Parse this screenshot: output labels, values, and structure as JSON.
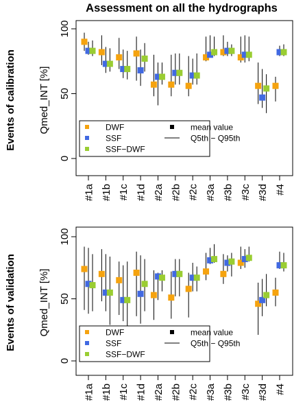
{
  "title": "Assessment on all the hydrographs",
  "colors": {
    "DWF": "#F5A30F",
    "SSF": "#4169E1",
    "SSF-DWF": "#9ACD32"
  },
  "legend": {
    "series": [
      "DWF",
      "SSF",
      "SSF−DWF"
    ],
    "mean_label": "mean value",
    "range_label": "Q5th − Q95th"
  },
  "chart_data": [
    {
      "type": "scatter",
      "row_label": "Events of calibration",
      "ylabel": "Qmed_INT [%]",
      "ylim": [
        0,
        100
      ],
      "yticks": [
        "0",
        "50",
        "100"
      ],
      "legend_position": "bottom-left",
      "categories": [
        "#1a",
        "#1b",
        "#1c",
        "#1d",
        "#2a",
        "#2b",
        "#2c",
        "#3a",
        "#3b",
        "#3c",
        "#3d",
        "#4"
      ],
      "series": [
        {
          "name": "DWF",
          "mean": [
            90,
            82,
            78,
            81,
            57,
            57,
            56,
            78,
            82,
            78,
            56,
            56
          ],
          "q5": [
            83,
            72,
            69,
            60,
            48,
            48,
            48,
            75,
            79,
            74,
            42,
            44
          ],
          "q95": [
            97,
            95,
            93,
            94,
            80,
            80,
            79,
            94,
            95,
            94,
            74,
            63
          ]
        },
        {
          "name": "SSF",
          "mean": [
            83,
            73,
            69,
            68,
            63,
            66,
            64,
            80,
            83,
            80,
            47,
            82
          ],
          "q5": [
            80,
            66,
            62,
            56,
            41,
            57,
            57,
            78,
            79,
            74,
            39,
            79
          ],
          "q95": [
            90,
            86,
            84,
            84,
            74,
            81,
            77,
            95,
            90,
            95,
            69,
            87
          ]
        },
        {
          "name": "SSF−DWF",
          "mean": [
            83,
            73,
            69,
            77,
            63,
            66,
            64,
            82,
            83,
            80,
            54,
            82
          ],
          "q5": [
            79,
            67,
            61,
            67,
            57,
            57,
            57,
            79,
            79,
            75,
            35,
            79
          ],
          "q95": [
            91,
            85,
            83,
            89,
            74,
            81,
            81,
            94,
            88,
            94,
            65,
            88
          ]
        }
      ]
    },
    {
      "type": "scatter",
      "row_label": "Events of validation",
      "ylabel": "Qmed_INT [%]",
      "ylim": [
        0,
        100
      ],
      "yticks": [
        "0",
        "50",
        "100"
      ],
      "legend_position": "bottom-left",
      "categories": [
        "#1a",
        "#1b",
        "#1c",
        "#1d",
        "#2a",
        "#2b",
        "#2c",
        "#3a",
        "#3b",
        "#3c",
        "#3d",
        "#4"
      ],
      "series": [
        {
          "name": "DWF",
          "mean": [
            74,
            70,
            65,
            71,
            53,
            51,
            58,
            72,
            70,
            79,
            46,
            55
          ],
          "q5": [
            41,
            48,
            37,
            36,
            33,
            34,
            35,
            65,
            62,
            74,
            21,
            44
          ],
          "q95": [
            92,
            90,
            80,
            88,
            73,
            72,
            71,
            87,
            86,
            92,
            63,
            67
          ]
        },
        {
          "name": "SSF",
          "mean": [
            62,
            55,
            49,
            54,
            68,
            70,
            67,
            81,
            79,
            82,
            49,
            77
          ],
          "q5": [
            38,
            40,
            32,
            30,
            49,
            52,
            56,
            78,
            72,
            75,
            36,
            74
          ],
          "q95": [
            91,
            86,
            77,
            85,
            71,
            82,
            79,
            91,
            85,
            90,
            66,
            88
          ]
        },
        {
          "name": "SSF−DWF",
          "mean": [
            61,
            55,
            49,
            62,
            67,
            70,
            67,
            82,
            80,
            83,
            53,
            77
          ],
          "q5": [
            40,
            29,
            28,
            40,
            56,
            52,
            56,
            79,
            68,
            80,
            44,
            72
          ],
          "q95": [
            86,
            84,
            80,
            82,
            73,
            82,
            76,
            94,
            87,
            92,
            70,
            87
          ]
        }
      ]
    }
  ]
}
